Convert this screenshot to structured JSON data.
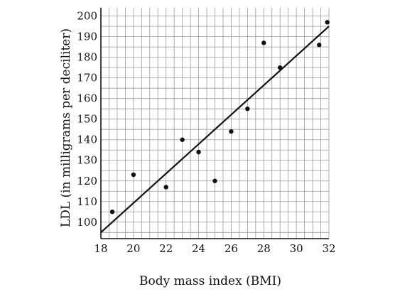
{
  "chart_data": {
    "type": "scatter",
    "title": "",
    "xlabel": "Body mass index (BMI)",
    "ylabel": "LDL (in milligrams per deciliter)",
    "xlim": [
      18,
      32
    ],
    "ylim": [
      92,
      204
    ],
    "grid": true,
    "x_minor_step": 0.5,
    "y_minor_step": 5,
    "x_ticks": [
      18,
      20,
      22,
      24,
      26,
      28,
      30,
      32
    ],
    "y_ticks": [
      100,
      110,
      120,
      130,
      140,
      150,
      160,
      170,
      180,
      190,
      200
    ],
    "points": [
      {
        "x": 18.7,
        "y": 105
      },
      {
        "x": 20,
        "y": 123
      },
      {
        "x": 22,
        "y": 117
      },
      {
        "x": 23,
        "y": 140
      },
      {
        "x": 24,
        "y": 134
      },
      {
        "x": 25,
        "y": 120
      },
      {
        "x": 26,
        "y": 144
      },
      {
        "x": 27,
        "y": 155
      },
      {
        "x": 28,
        "y": 187
      },
      {
        "x": 29,
        "y": 175
      },
      {
        "x": 31.4,
        "y": 186
      },
      {
        "x": 31.9,
        "y": 197
      }
    ],
    "fit_line": {
      "x": [
        18,
        32
      ],
      "y": [
        95,
        195
      ]
    },
    "colors": {
      "points": "#111111",
      "line": "#111111",
      "grid": "#9a9a9a",
      "axis": "#111111"
    }
  }
}
